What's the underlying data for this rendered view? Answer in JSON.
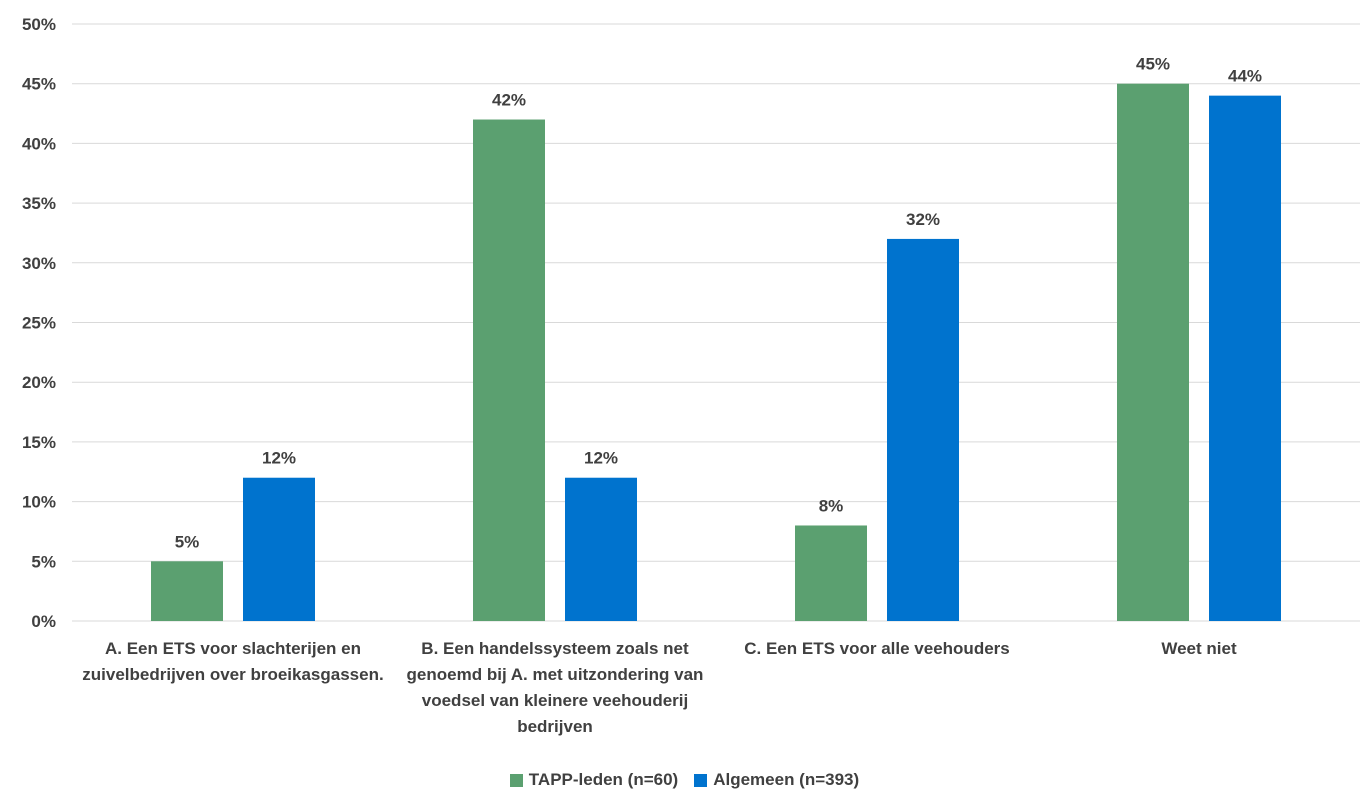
{
  "chart_data": {
    "type": "bar",
    "categories": [
      "A. Een ETS voor slachterijen en zuivelbedrijven over broeikasgassen.",
      "B. Een handelssysteem zoals net genoemd bij A. met uitzondering van voedsel van kleinere veehouderij bedrijven",
      "C. Een ETS voor alle veehouders",
      "Weet niet"
    ],
    "series": [
      {
        "name": "TAPP-leden (n=60)",
        "color": "#5BA070",
        "values": [
          5,
          42,
          8,
          45
        ],
        "labels": [
          "5%",
          "42%",
          "8%",
          "45%"
        ]
      },
      {
        "name": "Algemeen (n=393)",
        "color": "#0073CE",
        "values": [
          12,
          12,
          32,
          44
        ],
        "labels": [
          "12%",
          "12%",
          "32%",
          "44%"
        ]
      }
    ],
    "ylim": [
      0,
      50
    ],
    "yticks": [
      "0%",
      "5%",
      "10%",
      "15%",
      "20%",
      "25%",
      "30%",
      "35%",
      "40%",
      "45%",
      "50%"
    ],
    "grid": true,
    "legend_position": "bottom"
  }
}
